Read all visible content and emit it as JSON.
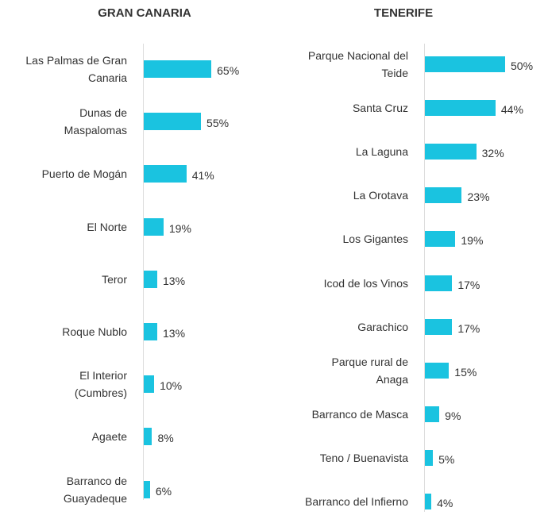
{
  "chart_data": [
    {
      "type": "bar",
      "orientation": "horizontal",
      "title": "GRAN CANARIA",
      "color": "#1ac3e0",
      "categories": [
        "Las Palmas de Gran Canaria",
        "Dunas de Maspalomas",
        "Puerto de Mogán",
        "El Norte",
        "Teror",
        "Roque Nublo",
        "El Interior (Cumbres)",
        "Agaete",
        "Barranco de Guayadeque"
      ],
      "values": [
        65,
        55,
        41,
        19,
        13,
        13,
        10,
        8,
        6
      ],
      "value_labels": [
        "65%",
        "55%",
        "41%",
        "19%",
        "13%",
        "13%",
        "10%",
        "8%",
        "6%"
      ]
    },
    {
      "type": "bar",
      "orientation": "horizontal",
      "title": "TENERIFE",
      "color": "#1ac3e0",
      "categories": [
        "Parque Nacional del Teide",
        "Santa Cruz",
        "La Laguna",
        "La Orotava",
        "Los Gigantes",
        "Icod de los Vinos",
        "Garachico",
        "Parque rural de Anaga",
        "Barranco de Masca",
        "Teno / Buenavista",
        "Barranco del Infierno"
      ],
      "values": [
        50,
        44,
        32,
        23,
        19,
        17,
        17,
        15,
        9,
        5,
        4
      ],
      "value_labels": [
        "50%",
        "44%",
        "32%",
        "23%",
        "19%",
        "17%",
        "17%",
        "15%",
        "9%",
        "5%",
        "4%"
      ]
    }
  ]
}
